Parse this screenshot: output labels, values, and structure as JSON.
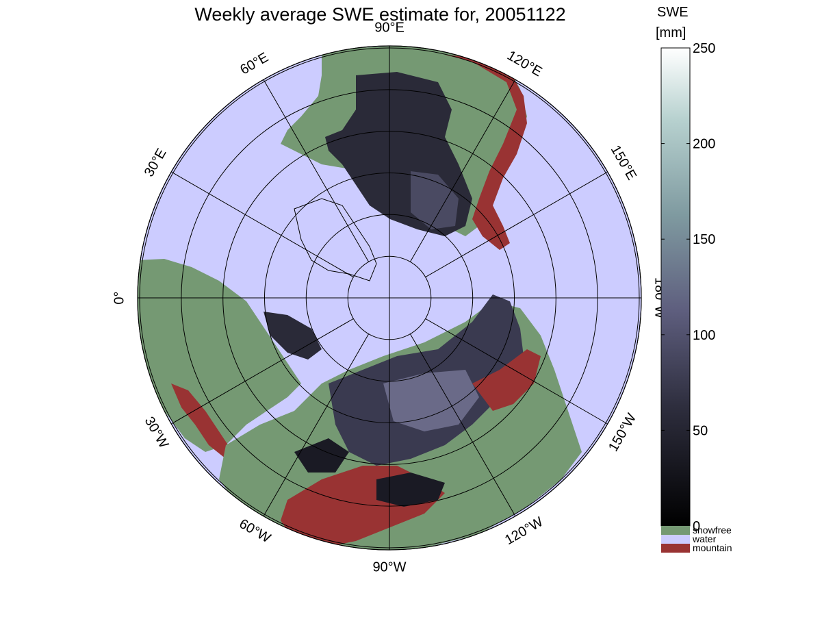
{
  "title": "Weekly average SWE estimate for, 20051122",
  "map": {
    "longitude_labels": [
      {
        "text": "90°W",
        "lon": -90
      },
      {
        "text": "60°W",
        "lon": -60
      },
      {
        "text": "120°W",
        "lon": -120
      },
      {
        "text": "30°W",
        "lon": -30
      },
      {
        "text": "150°W",
        "lon": -150
      },
      {
        "text": "0°",
        "lon": 0
      },
      {
        "text": "180°W",
        "lon": 180
      },
      {
        "text": "30°E",
        "lon": 30
      },
      {
        "text": "150°E",
        "lon": 150
      },
      {
        "text": "60°E",
        "lon": 60
      },
      {
        "text": "120°E",
        "lon": 120
      },
      {
        "text": "90°E",
        "lon": 90
      }
    ],
    "meridian_step_deg": 30,
    "latitude_circles": 6,
    "colors": {
      "water": "#ccccff",
      "snowfree": "#759973",
      "mountain": "#993333",
      "snow_low": "#151520",
      "snow_mid": "#5a5a78"
    }
  },
  "colorbar": {
    "title_line1": "SWE",
    "title_line2": "[mm]",
    "min": 0,
    "max": 250,
    "ticks": [
      "0",
      "50",
      "100",
      "150",
      "200",
      "250"
    ],
    "categories": [
      {
        "label": "snowfree",
        "color": "#759973"
      },
      {
        "label": "water",
        "color": "#ccccff"
      },
      {
        "label": "mountain",
        "color": "#993333"
      }
    ]
  }
}
